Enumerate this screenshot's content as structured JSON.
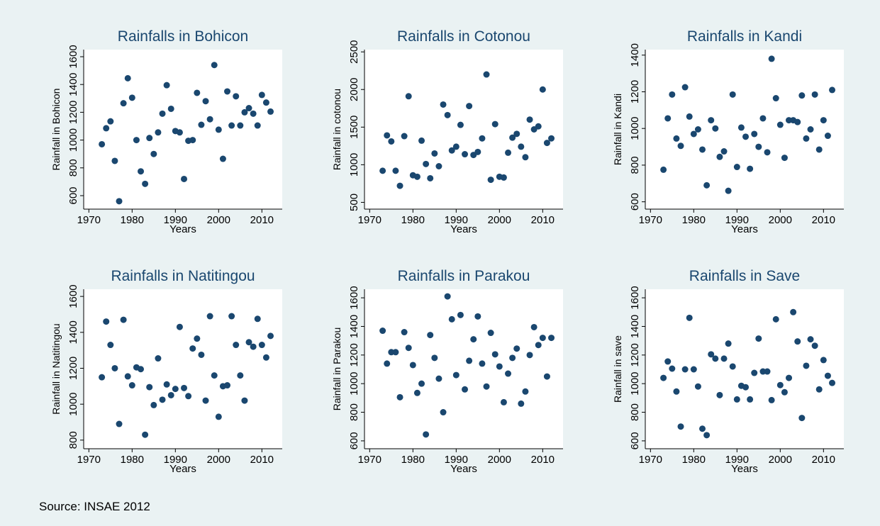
{
  "chart_data": [
    {
      "type": "scatter",
      "title": "Rainfalls in Bohicon",
      "x_label": "Years",
      "y_label": "Rainfall in Bohicon",
      "color": "#1a476f",
      "x": [
        1973,
        1974,
        1975,
        1976,
        1977,
        1978,
        1979,
        1980,
        1981,
        1982,
        1983,
        1984,
        1985,
        1986,
        1987,
        1988,
        1989,
        1990,
        1991,
        1992,
        1993,
        1994,
        1995,
        1996,
        1997,
        1998,
        1999,
        2000,
        2001,
        2002,
        2003,
        2004,
        2005,
        2006,
        2007,
        2008,
        2009,
        2010,
        2011,
        2012
      ],
      "values": [
        970,
        1085,
        1135,
        850,
        560,
        1265,
        1445,
        1305,
        1000,
        775,
        685,
        1015,
        900,
        1055,
        1190,
        1395,
        1225,
        1065,
        1055,
        720,
        995,
        1000,
        1340,
        1110,
        1280,
        1150,
        1540,
        1075,
        865,
        1350,
        1105,
        1315,
        1105,
        1200,
        1230,
        1190,
        1105,
        1325,
        1270,
        1205
      ],
      "xlim": [
        1968.8,
        2014.7
      ],
      "ylim": [
        503,
        1651
      ],
      "xticks": [
        1970,
        1980,
        1990,
        2000,
        2010
      ],
      "yticks": [
        600,
        800,
        1000,
        1200,
        1400,
        1600
      ]
    },
    {
      "type": "scatter",
      "title": "Rainfalls in Cotonou",
      "x_label": "Years",
      "y_label": "Rainfall in cotonou",
      "color": "#1a476f",
      "x": [
        1973,
        1974,
        1975,
        1976,
        1977,
        1978,
        1979,
        1980,
        1981,
        1982,
        1983,
        1984,
        1985,
        1986,
        1987,
        1988,
        1989,
        1990,
        1991,
        1992,
        1993,
        1994,
        1995,
        1996,
        1997,
        1998,
        1999,
        2000,
        2001,
        2002,
        2003,
        2004,
        2005,
        2006,
        2007,
        2008,
        2009,
        2010,
        2011,
        2012
      ],
      "values": [
        920,
        1390,
        1310,
        920,
        720,
        1380,
        1910,
        860,
        840,
        1320,
        1010,
        820,
        1150,
        980,
        1800,
        1660,
        1190,
        1240,
        1530,
        1140,
        1780,
        1130,
        1170,
        1350,
        2200,
        800,
        1540,
        840,
        830,
        1160,
        1360,
        1410,
        1240,
        1100,
        1600,
        1470,
        1510,
        2000,
        1290,
        1350
      ],
      "xlim": [
        1968.8,
        2014.7
      ],
      "ylim": [
        410,
        2530
      ],
      "xticks": [
        1970,
        1980,
        1990,
        2000,
        2010
      ],
      "yticks": [
        500,
        1000,
        1500,
        2000,
        2500
      ]
    },
    {
      "type": "scatter",
      "title": "Rainfalls in Kandi",
      "x_label": "Years",
      "y_label": "Rainfall in Kandi",
      "color": "#1a476f",
      "x": [
        1973,
        1974,
        1975,
        1976,
        1977,
        1978,
        1979,
        1980,
        1981,
        1982,
        1983,
        1984,
        1985,
        1986,
        1987,
        1988,
        1989,
        1990,
        1991,
        1992,
        1993,
        1994,
        1995,
        1996,
        1997,
        1998,
        1999,
        2000,
        2001,
        2002,
        2003,
        2004,
        2005,
        2006,
        2007,
        2008,
        2009,
        2010,
        2011,
        2012
      ],
      "values": [
        775,
        1055,
        1185,
        945,
        905,
        1225,
        1065,
        970,
        995,
        885,
        690,
        1045,
        1000,
        845,
        875,
        660,
        1185,
        790,
        1005,
        955,
        780,
        970,
        900,
        1055,
        870,
        1380,
        1165,
        1020,
        840,
        1045,
        1045,
        1035,
        1180,
        945,
        995,
        1185,
        885,
        1045,
        960,
        1210
      ],
      "xlim": [
        1968.8,
        2014.7
      ],
      "ylim": [
        560,
        1430
      ],
      "xticks": [
        1970,
        1980,
        1990,
        2000,
        2010
      ],
      "yticks": [
        600,
        800,
        1000,
        1200,
        1400
      ]
    },
    {
      "type": "scatter",
      "title": "Rainfalls in Natitingou",
      "x_label": "Years",
      "y_label": "Rainfall in Natitingou",
      "color": "#1a476f",
      "x": [
        1973,
        1974,
        1975,
        1976,
        1977,
        1978,
        1979,
        1980,
        1981,
        1982,
        1983,
        1984,
        1985,
        1986,
        1987,
        1988,
        1989,
        1990,
        1991,
        1992,
        1993,
        1994,
        1995,
        1996,
        1997,
        1998,
        1999,
        2000,
        2001,
        2002,
        2003,
        2004,
        2005,
        2006,
        2007,
        2008,
        2009,
        2010,
        2011,
        2012
      ],
      "values": [
        1150,
        1460,
        1330,
        1200,
        890,
        1470,
        1155,
        1105,
        1205,
        1195,
        830,
        1095,
        995,
        1255,
        1025,
        1110,
        1050,
        1085,
        1430,
        1090,
        1045,
        1310,
        1365,
        1275,
        1020,
        1490,
        1160,
        930,
        1100,
        1105,
        1490,
        1330,
        1160,
        1020,
        1345,
        1320,
        1475,
        1330,
        1260,
        1380
      ],
      "xlim": [
        1968.8,
        2014.7
      ],
      "ylim": [
        752,
        1640
      ],
      "xticks": [
        1970,
        1980,
        1990,
        2000,
        2010
      ],
      "yticks": [
        800,
        1000,
        1200,
        1400,
        1600
      ]
    },
    {
      "type": "scatter",
      "title": "Rainfalls in Parakou",
      "x_label": "Years",
      "y_label": "Rainfall in Parakou",
      "color": "#1a476f",
      "x": [
        1973,
        1974,
        1975,
        1976,
        1977,
        1978,
        1979,
        1980,
        1981,
        1982,
        1983,
        1984,
        1985,
        1986,
        1987,
        1988,
        1989,
        1990,
        1991,
        1992,
        1993,
        1994,
        1995,
        1996,
        1997,
        1998,
        1999,
        2000,
        2001,
        2002,
        2003,
        2004,
        2005,
        2006,
        2007,
        2008,
        2009,
        2010,
        2011,
        2012
      ],
      "values": [
        1370,
        1140,
        1220,
        1220,
        905,
        1360,
        1250,
        1130,
        935,
        1000,
        645,
        1340,
        1180,
        1035,
        800,
        1610,
        1450,
        1060,
        1480,
        960,
        1160,
        1310,
        1470,
        1140,
        980,
        1355,
        1205,
        1120,
        870,
        1070,
        1180,
        1245,
        860,
        945,
        1200,
        1395,
        1270,
        1320,
        1050,
        1320
      ],
      "xlim": [
        1968.8,
        2014.7
      ],
      "ylim": [
        545,
        1660
      ],
      "xticks": [
        1970,
        1980,
        1990,
        2000,
        2010
      ],
      "yticks": [
        600,
        800,
        1000,
        1200,
        1400,
        1600
      ]
    },
    {
      "type": "scatter",
      "title": "Rainfalls in Save",
      "x_label": "Years",
      "y_label": "Rainfall in save",
      "color": "#1a476f",
      "x": [
        1973,
        1974,
        1975,
        1976,
        1977,
        1978,
        1979,
        1980,
        1981,
        1982,
        1983,
        1984,
        1985,
        1986,
        1987,
        1988,
        1989,
        1990,
        1991,
        1992,
        1993,
        1994,
        1995,
        1996,
        1997,
        1998,
        1999,
        2000,
        2001,
        2002,
        2003,
        2004,
        2005,
        2006,
        2007,
        2008,
        2009,
        2010,
        2011,
        2012
      ],
      "values": [
        1040,
        1155,
        1105,
        945,
        700,
        1100,
        1460,
        1100,
        980,
        685,
        640,
        1205,
        1175,
        920,
        1175,
        1280,
        1120,
        890,
        985,
        975,
        890,
        1075,
        1315,
        1085,
        1085,
        885,
        1450,
        990,
        940,
        1040,
        1500,
        1295,
        760,
        1125,
        1310,
        1265,
        960,
        1165,
        1055,
        1005
      ],
      "xlim": [
        1968.8,
        2014.7
      ],
      "ylim": [
        545,
        1660
      ],
      "xticks": [
        1970,
        1980,
        1990,
        2000,
        2010
      ],
      "yticks": [
        600,
        800,
        1000,
        1200,
        1400,
        1600
      ]
    }
  ],
  "source": "Source: INSAE 2012"
}
